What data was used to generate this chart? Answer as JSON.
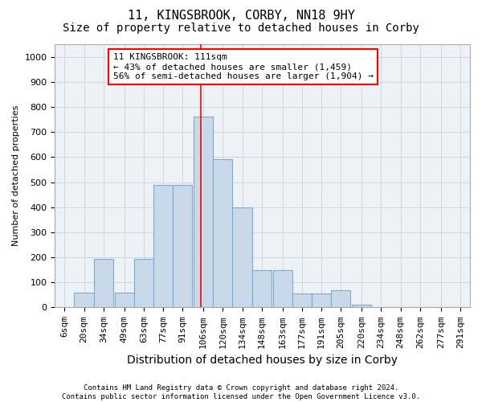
{
  "title": "11, KINGSBROOK, CORBY, NN18 9HY",
  "subtitle": "Size of property relative to detached houses in Corby",
  "xlabel": "Distribution of detached houses by size in Corby",
  "ylabel": "Number of detached properties",
  "footer_line1": "Contains HM Land Registry data © Crown copyright and database right 2024.",
  "footer_line2": "Contains public sector information licensed under the Open Government Licence v3.0.",
  "annotation_title": "11 KINGSBROOK: 111sqm",
  "annotation_line1": "← 43% of detached houses are smaller (1,459)",
  "annotation_line2": "56% of semi-detached houses are larger (1,904) →",
  "bar_color": "#c9d9ea",
  "bar_edge_color": "#7aaace",
  "vline_x": 111,
  "vline_color": "red",
  "categories": [
    "6sqm",
    "20sqm",
    "34sqm",
    "49sqm",
    "63sqm",
    "77sqm",
    "91sqm",
    "106sqm",
    "120sqm",
    "134sqm",
    "148sqm",
    "163sqm",
    "177sqm",
    "191sqm",
    "205sqm",
    "220sqm",
    "234sqm",
    "248sqm",
    "262sqm",
    "277sqm",
    "291sqm"
  ],
  "bin_edges": [
    6,
    20,
    34,
    49,
    63,
    77,
    91,
    106,
    120,
    134,
    148,
    163,
    177,
    191,
    205,
    220,
    234,
    248,
    262,
    277,
    291
  ],
  "bin_width": 14,
  "values": [
    0,
    60,
    195,
    60,
    195,
    490,
    490,
    760,
    590,
    400,
    150,
    150,
    55,
    55,
    70,
    10,
    0,
    0,
    0,
    0,
    0
  ],
  "ylim": [
    0,
    1050
  ],
  "yticks": [
    0,
    100,
    200,
    300,
    400,
    500,
    600,
    700,
    800,
    900,
    1000
  ],
  "grid_color": "#cdd8e3",
  "bg_color": "#eef2f7",
  "title_fontsize": 11,
  "subtitle_fontsize": 10,
  "ylabel_fontsize": 8,
  "xlabel_fontsize": 10,
  "tick_fontsize": 8,
  "footer_fontsize": 6.5,
  "ann_fontsize": 8
}
